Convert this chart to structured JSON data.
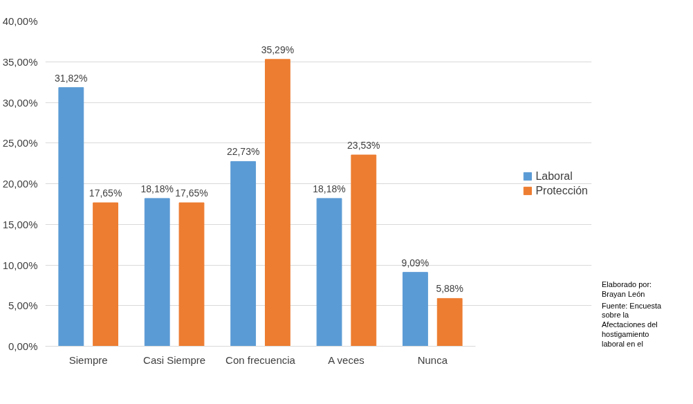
{
  "chart_data": {
    "type": "bar",
    "categories": [
      "Siempre",
      "Casi Siempre",
      "Con frecuencia",
      "A veces",
      "Nunca"
    ],
    "series": [
      {
        "name": "Laboral",
        "color": "#5b9bd5",
        "values": [
          31.82,
          18.18,
          22.73,
          18.18,
          9.09
        ]
      },
      {
        "name": "Protección",
        "color": "#ed7d31",
        "values": [
          17.65,
          17.65,
          35.29,
          23.53,
          5.88
        ]
      }
    ],
    "ylim": [
      0,
      40
    ],
    "yticks": [
      {
        "value": 0,
        "label": "0,00%"
      },
      {
        "value": 5,
        "label": "5,00%"
      },
      {
        "value": 10,
        "label": "10,00%"
      },
      {
        "value": 15,
        "label": "15,00%"
      },
      {
        "value": 20,
        "label": "20,00%"
      },
      {
        "value": 25,
        "label": "25,00%"
      },
      {
        "value": 30,
        "label": "30,00%"
      },
      {
        "value": 35,
        "label": "35,00%"
      },
      {
        "value": 40,
        "label": "40,00%"
      }
    ],
    "grid": "y",
    "legend": "right",
    "value_labels": [
      [
        "31,82%",
        "18,18%",
        "22,73%",
        "18,18%",
        "9,09%"
      ],
      [
        "17,65%",
        "17,65%",
        "35,29%",
        "23,53%",
        "5,88%"
      ]
    ],
    "annotations": [
      "Elaborado por: Brayan León",
      "Fuente: Encuesta sobre la Afectaciones del hostigamiento laboral en el"
    ]
  }
}
